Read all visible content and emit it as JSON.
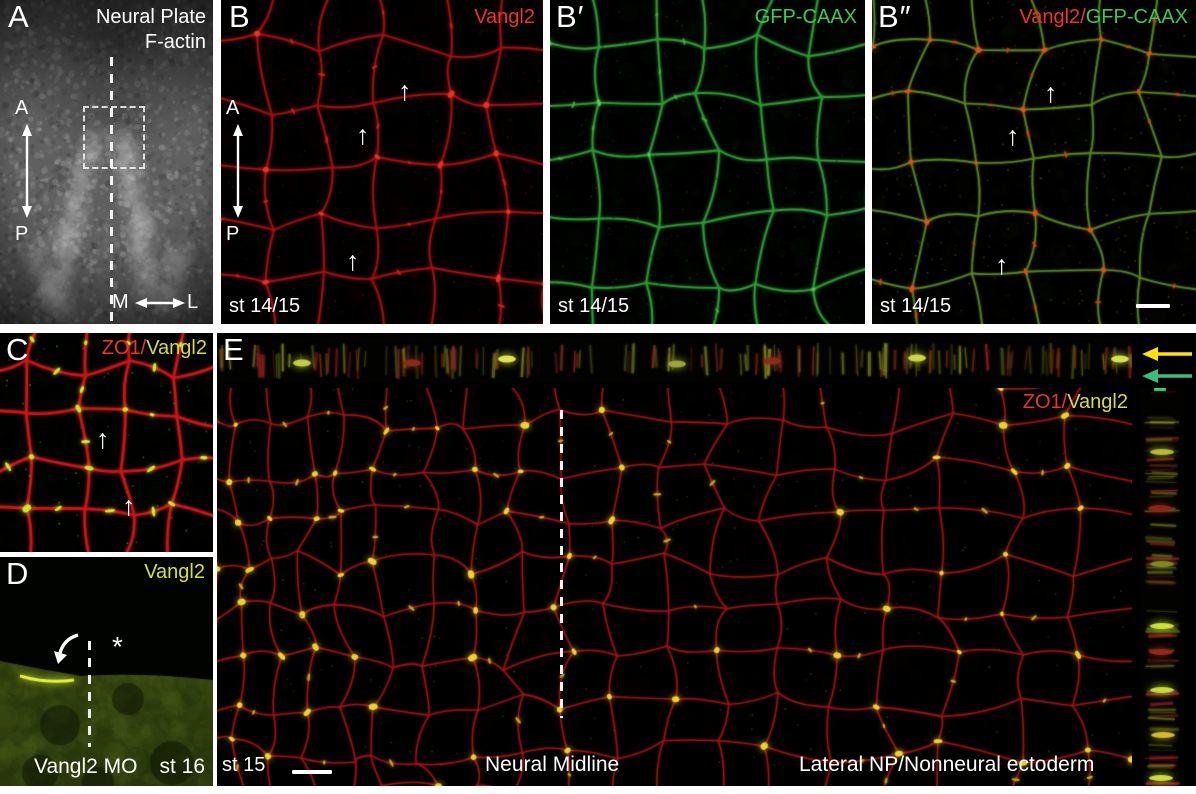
{
  "colors": {
    "marker_red": "#ee3424",
    "marker_green": "#3ec954",
    "marker_yellow": "#d9d943",
    "marker_lime": "#d6e03a",
    "arrow_yellow": "#ffe10a",
    "arrow_green": "#3cbd7c",
    "annotation_white": "#ffffff",
    "membrane_red": "#b81414",
    "membrane_green": "#2c9a33",
    "junction_yellow": "#e6e23c"
  },
  "icons": {
    "up_arrow": "↑"
  },
  "panels": {
    "A": {
      "letter": "A",
      "title_line1": "Neural Plate",
      "title_line2": "F-actin",
      "axis_anterior": "A",
      "axis_posterior": "P",
      "axis_medial": "M",
      "axis_lateral": "L"
    },
    "B": {
      "letter": "B",
      "marker": "Vangl2",
      "stage": "st 14/15",
      "axis_anterior": "A",
      "axis_posterior": "P"
    },
    "B_prime": {
      "letter": "B′",
      "marker": "GFP-CAAX",
      "stage": "st 14/15"
    },
    "B_double_prime": {
      "letter": "B″",
      "marker_red": "Vangl2",
      "separator": "/",
      "marker_green": "GFP-CAAX",
      "stage": "st 14/15"
    },
    "C": {
      "letter": "C",
      "marker_red": "ZO1",
      "separator": "/",
      "marker_yellow": "Vangl2"
    },
    "D": {
      "letter": "D",
      "marker": "Vangl2",
      "treatment": "Vangl2 MO",
      "stage": "st 16",
      "asterisk": "*"
    },
    "E": {
      "letter": "E",
      "marker_red": "ZO1",
      "separator": "/",
      "marker_yellow": "Vangl2",
      "stage": "st 15",
      "region_left": "Neural Midline",
      "region_right": "Lateral NP/Nonneural ectoderm"
    }
  }
}
